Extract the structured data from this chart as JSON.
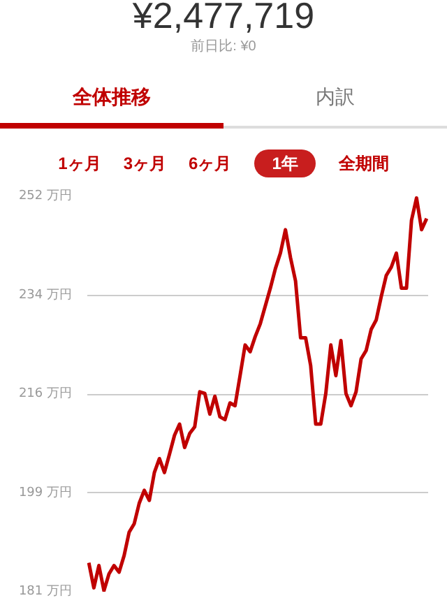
{
  "chart_data": {
    "type": "line",
    "title": "¥2,477,719",
    "subtitle": "前日比: ¥0",
    "annotations": [
      "全体推移",
      "内訳",
      "1ヶ月",
      "3ヶ月",
      "6ヶ月",
      "1年",
      "全期間"
    ],
    "categories": [
      null,
      null,
      null,
      null,
      null,
      null,
      null,
      null,
      null,
      null,
      null,
      null,
      null,
      null,
      null,
      null,
      null,
      null,
      null,
      null,
      null,
      null,
      null,
      null,
      null,
      null,
      null,
      null,
      null,
      null,
      null,
      null,
      null,
      null,
      null,
      null,
      null,
      null,
      null,
      null,
      null,
      null,
      null,
      null,
      null,
      null,
      null,
      null,
      null,
      null,
      null,
      null,
      null,
      null,
      null,
      null,
      null,
      null,
      null,
      null,
      null,
      null,
      null,
      null,
      null,
      null,
      null,
      null
    ],
    "series": [
      {
        "color": "#c00000",
        "values": [
          186.2,
          181.7,
          185.7,
          181.2,
          184.2,
          185.7,
          184.5,
          187.5,
          191.7,
          193.2,
          196.9,
          199.2,
          197.4,
          202.4,
          204.9,
          202.4,
          205.7,
          209.1,
          211.1,
          206.9,
          209.4,
          210.6,
          216.9,
          216.6,
          212.9,
          216.1,
          212.4,
          211.9,
          214.9,
          214.4,
          219.8,
          225.3,
          224.1,
          226.8,
          229.1,
          232.3,
          235.5,
          239.0,
          241.8,
          246.0,
          241.0,
          236.8,
          226.6,
          226.6,
          221.6,
          211.1,
          211.1,
          216.6,
          225.3,
          219.8,
          226.1,
          216.6,
          214.4,
          216.9,
          222.8,
          224.3,
          228.1,
          229.8,
          234.0,
          237.8,
          239.3,
          241.8,
          235.5,
          235.5,
          247.7,
          251.7,
          246.0,
          248.0
        ]
      }
    ],
    "ylim": [
      181,
      252
    ],
    "yticks": [
      {
        "value": 181,
        "label": "181 万円"
      },
      {
        "value": 198.75,
        "label": "199 万円"
      },
      {
        "value": 216.5,
        "label": "216 万円"
      },
      {
        "value": 234.25,
        "label": "234 万円"
      },
      {
        "value": 252,
        "label": "252 万円"
      }
    ],
    "grid": "y",
    "line_style": "solid"
  }
}
